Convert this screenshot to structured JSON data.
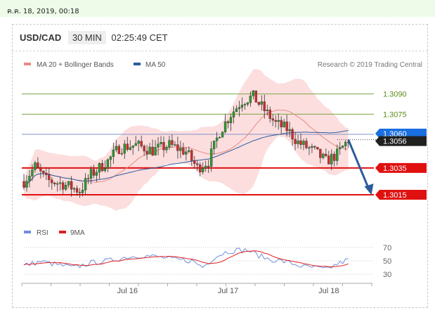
{
  "timestamp": "ค.ค. 18, 2019, 00:18",
  "header": {
    "symbol": "USD/CAD",
    "timeframe": "30 MIN",
    "time": "02:25:49 CET"
  },
  "legend": {
    "ma20": {
      "label": "MA 20 + Bollinger Bands",
      "color": "#e88a84"
    },
    "ma50": {
      "label": "MA 50",
      "color": "#2e5a9c"
    }
  },
  "credit": "Research © 2019 Trading Central",
  "rsi_legend": {
    "rsi": {
      "label": "RSI",
      "color": "#6f8fdb"
    },
    "ma9": {
      "label": "9MA",
      "color": "#e02020"
    }
  },
  "chart_data": {
    "type": "candlestick",
    "ylim": [
      1.3003,
      1.3105
    ],
    "x_tick_labels": [
      {
        "label": "Jul 16",
        "index": 37
      },
      {
        "label": "Jul 17",
        "index": 73
      },
      {
        "label": "Jul 18",
        "index": 109
      }
    ],
    "candle_count": 117,
    "path": [
      [
        0,
        1.3025
      ],
      [
        4,
        1.3036
      ],
      [
        8,
        1.3026
      ],
      [
        14,
        1.3023
      ],
      [
        20,
        1.3018
      ],
      [
        24,
        1.303
      ],
      [
        30,
        1.304
      ],
      [
        34,
        1.305
      ],
      [
        40,
        1.3052
      ],
      [
        46,
        1.3048
      ],
      [
        52,
        1.3052
      ],
      [
        58,
        1.3047
      ],
      [
        62,
        1.3035
      ],
      [
        66,
        1.304
      ],
      [
        70,
        1.3062
      ],
      [
        74,
        1.3075
      ],
      [
        78,
        1.3085
      ],
      [
        82,
        1.3088
      ],
      [
        86,
        1.3078
      ],
      [
        90,
        1.3068
      ],
      [
        94,
        1.3064
      ],
      [
        98,
        1.3054
      ],
      [
        104,
        1.3047
      ],
      [
        108,
        1.304
      ],
      [
        112,
        1.3045
      ],
      [
        116,
        1.3056
      ]
    ],
    "price_levels": [
      {
        "label": "1.3090",
        "value": 1.309,
        "kind": "resistance-2",
        "color": "#78a640",
        "text_color": "#5a8a1c"
      },
      {
        "label": "1.3075",
        "value": 1.3075,
        "kind": "resistance-1",
        "color": "#78a640",
        "text_color": "#5a8a1c"
      },
      {
        "label": "1.3060",
        "value": 1.306,
        "kind": "pivot",
        "color": "#7f93c9",
        "badge": "#1a6fe0"
      },
      {
        "label": "1.3056",
        "value": 1.3056,
        "kind": "last-price",
        "badge": "#202020"
      },
      {
        "label": "1.3035",
        "value": 1.3035,
        "kind": "support-1",
        "color": "#e01010",
        "badge": "#e01010"
      },
      {
        "label": "1.3015",
        "value": 1.3015,
        "kind": "support-2",
        "color": "#e01010",
        "badge": "#e01010"
      }
    ],
    "projection": {
      "from": [
        116,
        1.3056
      ],
      "to": [
        124,
        1.3016
      ],
      "color": "#2a5c9a"
    },
    "rsi": {
      "ylim": [
        20,
        80
      ],
      "levels": [
        {
          "label": "70",
          "value": 70
        },
        {
          "label": "50",
          "value": 50
        },
        {
          "label": "30",
          "value": 30
        }
      ],
      "path": [
        [
          0,
          43
        ],
        [
          6,
          49
        ],
        [
          12,
          44
        ],
        [
          18,
          40
        ],
        [
          24,
          47
        ],
        [
          30,
          50
        ],
        [
          36,
          55
        ],
        [
          42,
          58
        ],
        [
          48,
          56
        ],
        [
          54,
          52
        ],
        [
          60,
          50
        ],
        [
          64,
          41
        ],
        [
          68,
          55
        ],
        [
          72,
          63
        ],
        [
          76,
          66
        ],
        [
          80,
          66
        ],
        [
          84,
          58
        ],
        [
          88,
          52
        ],
        [
          92,
          50
        ],
        [
          96,
          46
        ],
        [
          100,
          41
        ],
        [
          104,
          40
        ],
        [
          108,
          37
        ],
        [
          112,
          45
        ],
        [
          116,
          52
        ]
      ]
    }
  }
}
